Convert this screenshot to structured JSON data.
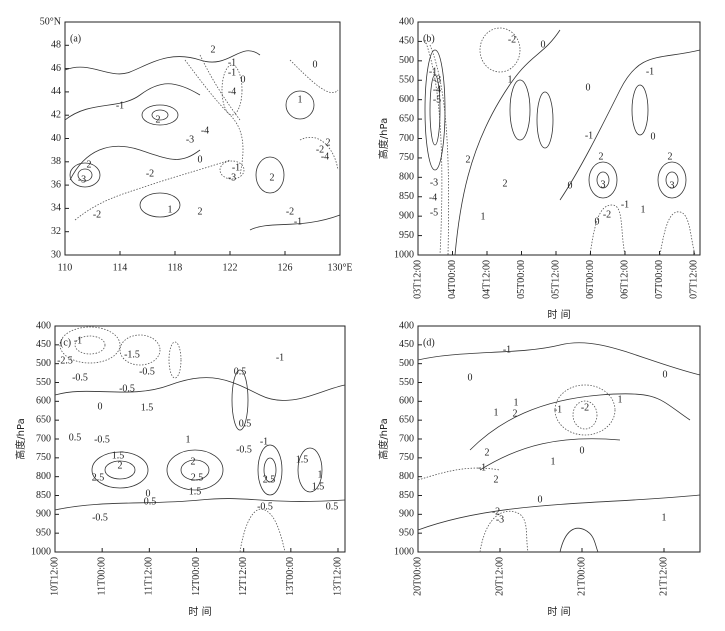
{
  "chart_data": [
    {
      "type": "contour",
      "panel_label": "(a)",
      "xlim": [
        110,
        130
      ],
      "xticks": [
        110,
        114,
        118,
        122,
        126,
        {
          "value": 130,
          "label": "130°E"
        }
      ],
      "ylim": [
        30,
        50
      ],
      "yticks": [
        30,
        32,
        34,
        36,
        38,
        40,
        42,
        44,
        46,
        48,
        {
          "value": 50,
          "label": "50°N"
        }
      ],
      "annotations": [
        "2",
        "-1",
        "-1",
        "0",
        "-4",
        "1",
        "-1",
        "2",
        "-3",
        "-4",
        "-2",
        "0",
        "2",
        "-3",
        "-2",
        "1",
        "2",
        "-1",
        "2",
        "-1",
        "-3",
        "2",
        "-2",
        "-4",
        "-2",
        "0"
      ]
    },
    {
      "type": "contour",
      "panel_label": "(b)",
      "x_label": "时 间",
      "y_label": "高度/hPa",
      "categories": [
        "03T12:00",
        "04T00:00",
        "04T12:00",
        "05T00:00",
        "05T12:00",
        "06T00:00",
        "06T12:00",
        "07T00:00",
        "07T12:00"
      ],
      "ylim": [
        1000,
        400
      ],
      "yticks": [
        400,
        450,
        500,
        550,
        600,
        650,
        700,
        750,
        800,
        850,
        900,
        950,
        1000
      ],
      "annotations": [
        "-2",
        "-1",
        "-3",
        "-4",
        "-5",
        "0",
        "0",
        "1",
        "-1",
        "0",
        "-1",
        "2",
        "2",
        "0",
        "2",
        "3",
        "2",
        "3",
        "-3",
        "-4",
        "-5",
        "1",
        "-1",
        "-2",
        "0",
        "1"
      ]
    },
    {
      "type": "contour",
      "panel_label": "(c)",
      "x_label": "时 间",
      "y_label": "高度/hPa",
      "categories": [
        "10T12:00",
        "11T00:00",
        "11T12:00",
        "12T00:00",
        "12T12:00",
        "13T00:00",
        "13T12:00"
      ],
      "ylim": [
        1000,
        400
      ],
      "yticks": [
        400,
        450,
        500,
        550,
        600,
        650,
        700,
        750,
        800,
        850,
        900,
        950,
        1000
      ],
      "annotations": [
        "-1",
        "-2.5",
        "-0.5",
        "-1.5",
        "-0.5",
        "-0.5",
        "0",
        "-0.5",
        "1.5",
        "0.5",
        "0.5",
        "0.5",
        "1",
        "-1",
        "2",
        "1.5",
        "2.5",
        "2.5",
        "2",
        "1.5",
        "0.5",
        "-0.5",
        "0",
        "1.5",
        "2.5",
        "-1",
        "-0.5",
        "1",
        "1.5",
        "-0.5",
        "0.5"
      ]
    },
    {
      "type": "contour",
      "panel_label": "(d)",
      "x_label": "时 间",
      "y_label": "高度/hPa",
      "categories": [
        "20T00:00",
        "20T12:00",
        "21T00:00",
        "21T12:00"
      ],
      "ylim": [
        1000,
        400
      ],
      "yticks": [
        400,
        450,
        500,
        550,
        600,
        650,
        700,
        750,
        800,
        850,
        900,
        950,
        1000
      ],
      "annotations": [
        "-1",
        "0",
        "0",
        "1",
        "2",
        "1",
        "-2",
        "-1",
        "1",
        "2",
        "1",
        "0",
        "2",
        "-1",
        "0",
        "-2",
        "-3",
        "1"
      ]
    }
  ]
}
